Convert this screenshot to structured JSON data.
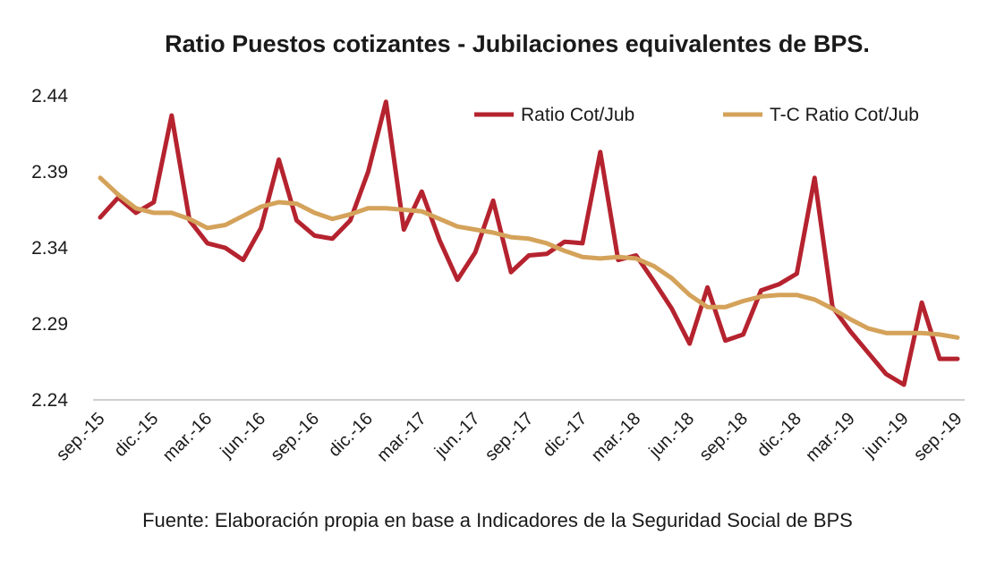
{
  "chart_data": {
    "type": "line",
    "title": "Ratio Puestos cotizantes - Jubilaciones  equivalentes de BPS.",
    "xlabel": "",
    "ylabel": "",
    "source": "Fuente: Elaboración propia en base a Indicadores de la Seguridad Social de BPS",
    "ylim": [
      2.24,
      2.44
    ],
    "yticks": [
      "2.24",
      "2.29",
      "2.34",
      "2.39",
      "2.44"
    ],
    "ytick_values": [
      2.24,
      2.29,
      2.34,
      2.39,
      2.44
    ],
    "x": [
      "sep.-15",
      "oct.-15",
      "nov.-15",
      "dic.-15",
      "ene.-16",
      "feb.-16",
      "mar.-16",
      "abr.-16",
      "may.-16",
      "jun.-16",
      "jul.-16",
      "ago.-16",
      "sep.-16",
      "oct.-16",
      "nov.-16",
      "dic.-16",
      "ene.-17",
      "feb.-17",
      "mar.-17",
      "abr.-17",
      "may.-17",
      "jun.-17",
      "jul.-17",
      "ago.-17",
      "sep.-17",
      "oct.-17",
      "nov.-17",
      "dic.-17",
      "ene.-18",
      "feb.-18",
      "mar.-18",
      "abr.-18",
      "may.-18",
      "jun.-18",
      "jul.-18",
      "ago.-18",
      "sep.-18",
      "oct.-18",
      "nov.-18",
      "dic.-18",
      "ene.-19",
      "feb.-19",
      "mar.-19",
      "abr.-19",
      "may.-19",
      "jun.-19",
      "jul.-19",
      "ago.-19",
      "sep.-19"
    ],
    "xticks": [
      "sep.-15",
      "dic.-15",
      "mar.-16",
      "jun.-16",
      "sep.-16",
      "dic.-16",
      "mar.-17",
      "jun.-17",
      "sep.-17",
      "dic.-17",
      "mar.-18",
      "jun.-18",
      "sep.-18",
      "dic.-18",
      "mar.-19",
      "jun.-19",
      "sep.-19"
    ],
    "xtick_indices": [
      0,
      3,
      6,
      9,
      12,
      15,
      18,
      21,
      24,
      27,
      30,
      33,
      36,
      39,
      42,
      45,
      48
    ],
    "series": [
      {
        "name": "Ratio Cot/Jub",
        "color": "#b5232f",
        "values": [
          2.36,
          2.373,
          2.363,
          2.37,
          2.427,
          2.358,
          2.343,
          2.34,
          2.332,
          2.353,
          2.398,
          2.358,
          2.348,
          2.346,
          2.358,
          2.39,
          2.436,
          2.352,
          2.377,
          2.345,
          2.319,
          2.337,
          2.371,
          2.324,
          2.335,
          2.336,
          2.344,
          2.343,
          2.403,
          2.332,
          2.335,
          2.318,
          2.3,
          2.277,
          2.314,
          2.279,
          2.283,
          2.312,
          2.316,
          2.323,
          2.386,
          2.301,
          2.285,
          2.271,
          2.257,
          2.25,
          2.304,
          2.267,
          2.267
        ]
      },
      {
        "name": "T-C Ratio Cot/Jub",
        "color": "#d4a25a",
        "values": [
          2.386,
          2.375,
          2.366,
          2.363,
          2.363,
          2.359,
          2.353,
          2.355,
          2.361,
          2.367,
          2.37,
          2.369,
          2.363,
          2.359,
          2.362,
          2.366,
          2.366,
          2.365,
          2.364,
          2.359,
          2.354,
          2.352,
          2.35,
          2.347,
          2.346,
          2.343,
          2.338,
          2.334,
          2.333,
          2.334,
          2.333,
          2.328,
          2.32,
          2.309,
          2.301,
          2.301,
          2.305,
          2.308,
          2.309,
          2.309,
          2.306,
          2.3,
          2.293,
          2.287,
          2.284,
          2.284,
          2.284,
          2.283,
          2.281
        ]
      }
    ],
    "legend": {
      "position": "top-right"
    },
    "grid": false
  }
}
